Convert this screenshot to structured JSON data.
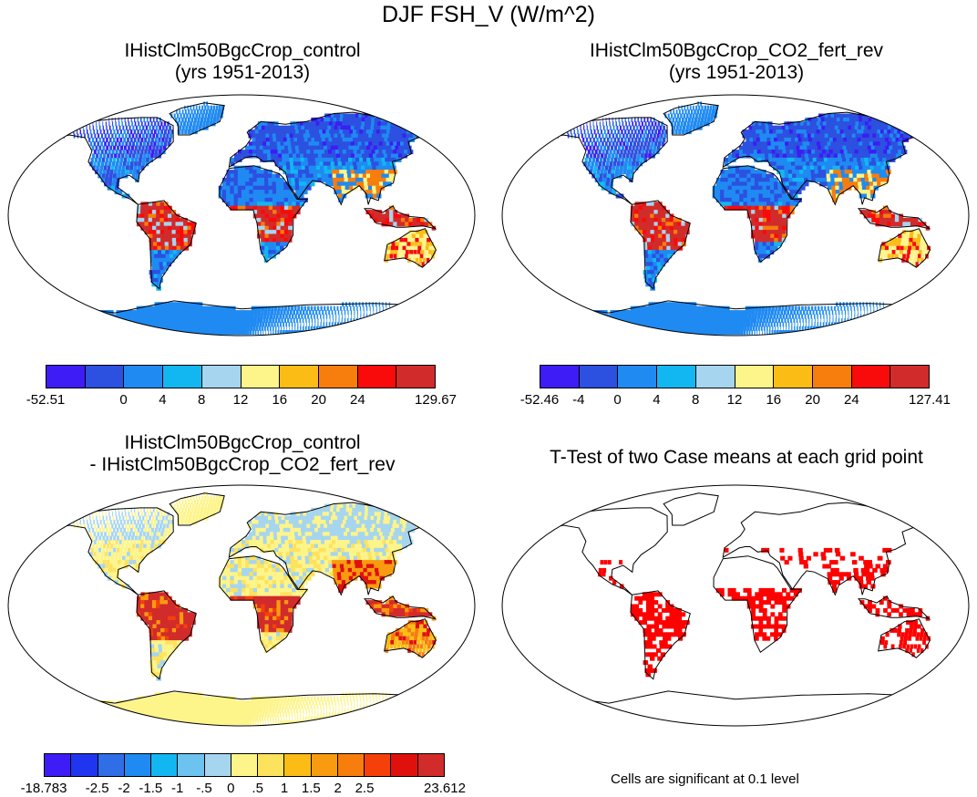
{
  "figure": {
    "title": "DJF FSH_V (W/m^2)"
  },
  "panels": [
    {
      "id": "control",
      "title_line1": "IHistClm50BgcCrop_control",
      "title_line2": "(yrs 1951-2013)",
      "colorbar": {
        "colors": [
          "#3d1cf5",
          "#2c50e0",
          "#1f8af2",
          "#12b7f2",
          "#a6d5ef",
          "#fdf48a",
          "#fbbc16",
          "#f77d0c",
          "#f80b0a",
          "#d12b2b"
        ],
        "labels": [
          "-52.51",
          "0",
          "4",
          "8",
          "12",
          "16",
          "20",
          "24",
          "129.67"
        ],
        "label_positions": [
          0,
          2,
          3,
          4,
          5,
          6,
          7,
          8,
          10
        ]
      }
    },
    {
      "id": "co2",
      "title_line1": "IHistClm50BgcCrop_CO2_fert_rev",
      "title_line2": "(yrs 1951-2013)",
      "colorbar": {
        "colors": [
          "#3d1cf5",
          "#2c50e0",
          "#1f8af2",
          "#12b7f2",
          "#a6d5ef",
          "#fdf48a",
          "#fbbc16",
          "#f77d0c",
          "#f80b0a",
          "#d12b2b"
        ],
        "labels": [
          "-52.46",
          "-4",
          "0",
          "4",
          "8",
          "12",
          "16",
          "20",
          "24",
          "127.41"
        ],
        "label_positions": [
          0,
          1,
          2,
          3,
          4,
          5,
          6,
          7,
          8,
          10
        ]
      }
    },
    {
      "id": "diff",
      "title_line1": "IHistClm50BgcCrop_control",
      "title_line2": "- IHistClm50BgcCrop_CO2_fert_rev",
      "colorbar": {
        "colors": [
          "#3d1cf5",
          "#1f35f0",
          "#2f6ee6",
          "#1f8af2",
          "#12b7f2",
          "#6cc3ef",
          "#a6d5ef",
          "#fdf48a",
          "#fde25e",
          "#fbbc16",
          "#f99b10",
          "#f77d0c",
          "#f5400a",
          "#e0100d",
          "#d12b2b"
        ],
        "labels": [
          "-18.783",
          "-2.5",
          "-2",
          "-1.5",
          "-1",
          "-.5",
          "0",
          ".5",
          "1",
          "1.5",
          "2",
          "2.5",
          "23.612"
        ],
        "label_positions": [
          0,
          2,
          3,
          4,
          5,
          6,
          7,
          8,
          9,
          10,
          11,
          12,
          15
        ]
      }
    },
    {
      "id": "ttest",
      "title_line1": "T-Test of two Case means at each grid point",
      "title_line2": "",
      "note": "Cells are significant at 0.1 level"
    }
  ],
  "map_colors": {
    "ocean": "#ffffff",
    "coast": "#000000",
    "significant": "#ff0000",
    "north_cold": "#2c50e0",
    "mid_blue": "#1f8af2",
    "tropics_hot": "#e02020",
    "warm": "#fbbc16",
    "pale_yellow": "#fdf48a",
    "light_blue": "#a6d5ef",
    "antarctica_a": "#1f8af2",
    "antarctica_diff": "#fdf48a"
  }
}
